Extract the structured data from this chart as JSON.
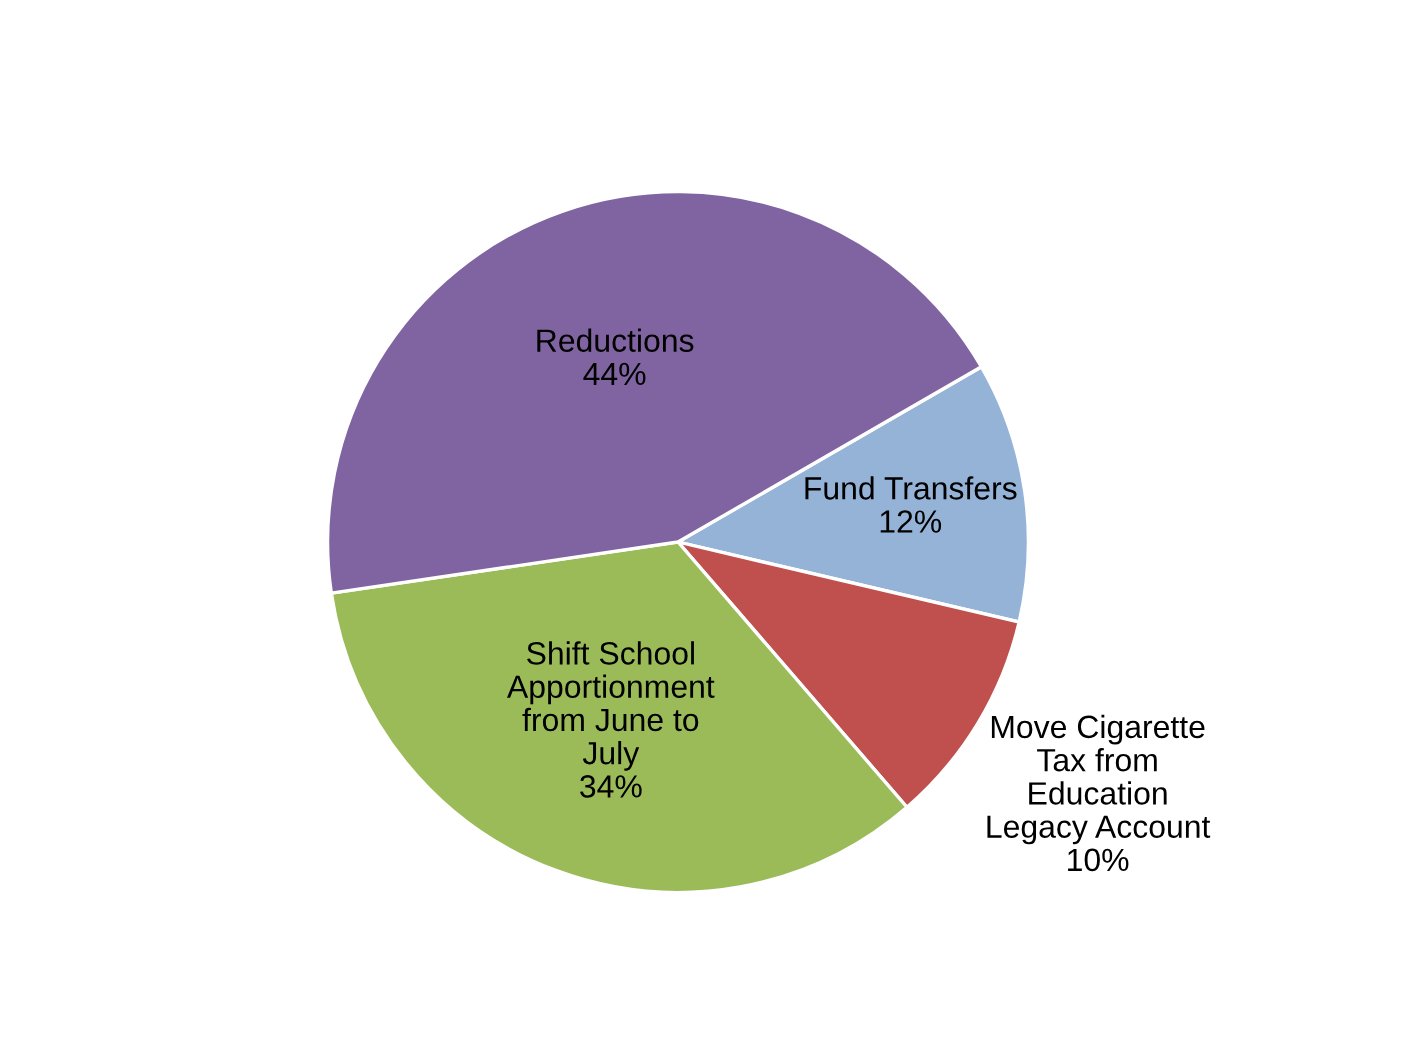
{
  "chart_data": {
    "type": "pie",
    "categories": [
      "Fund Transfers",
      "Move Cigarette\nTax from\nEducation\nLegacy Account",
      "Shift School\nApportionment\nfrom June to\nJuly",
      "Reductions"
    ],
    "values": [
      12,
      10,
      34,
      44
    ],
    "value_labels": [
      "12%",
      "10%",
      "34%",
      "44%"
    ],
    "colors": [
      "#95b3d7",
      "#c0504d",
      "#9bbb59",
      "#8064a2"
    ],
    "legend": false
  }
}
